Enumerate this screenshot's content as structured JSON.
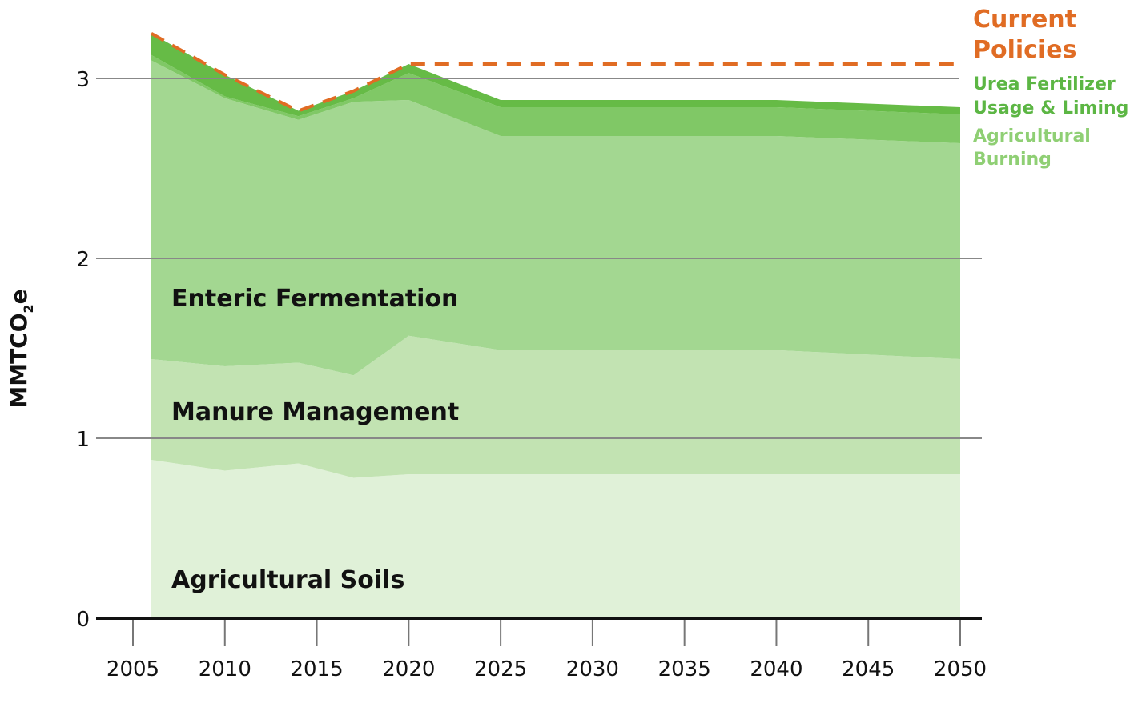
{
  "chart_data": {
    "type": "area",
    "stacked": true,
    "ylabel": "MMTCO",
    "ylabel_sub": "2",
    "ylabel_suffix": "e",
    "ylim": [
      0,
      3.3
    ],
    "xlim": [
      2005,
      2050
    ],
    "yticks": [
      "0",
      "1",
      "2",
      "3"
    ],
    "xticks": [
      "2005",
      "2010",
      "2015",
      "2020",
      "2025",
      "2030",
      "2035",
      "2040",
      "2045",
      "2050"
    ],
    "x": [
      2006,
      2010,
      2014,
      2017,
      2020,
      2025,
      2030,
      2035,
      2040,
      2050
    ],
    "series": [
      {
        "name": "Agricultural Soils",
        "color": "#e0f1d8",
        "values": [
          0.88,
          0.82,
          0.86,
          0.78,
          0.8,
          0.8,
          0.8,
          0.8,
          0.8,
          0.8
        ]
      },
      {
        "name": "Manure Management",
        "color": "#c2e3b2",
        "values": [
          0.56,
          0.58,
          0.56,
          0.57,
          0.77,
          0.69,
          0.69,
          0.69,
          0.69,
          0.64
        ]
      },
      {
        "name": "Enteric Fermentation",
        "color": "#a3d791",
        "values": [
          1.66,
          1.49,
          1.35,
          1.52,
          1.31,
          1.19,
          1.19,
          1.19,
          1.19,
          1.2
        ]
      },
      {
        "name": "Agricultural Burning",
        "color": "#80c866",
        "values": [
          0.03,
          0.01,
          0.02,
          0.02,
          0.15,
          0.16,
          0.16,
          0.16,
          0.16,
          0.16
        ]
      },
      {
        "name": "Urea Fertilizer Usage & Liming",
        "color": "#66bb46",
        "values": [
          0.12,
          0.12,
          0.03,
          0.04,
          0.05,
          0.04,
          0.04,
          0.04,
          0.04,
          0.04
        ]
      }
    ],
    "line": {
      "name": "Current Policies",
      "color": "#e06c24",
      "x": [
        2006,
        2010,
        2014,
        2017,
        2020,
        2050
      ],
      "values": [
        3.25,
        3.02,
        2.82,
        2.93,
        3.08,
        3.08
      ]
    },
    "legend": {
      "placement": "top-right",
      "current_policies": [
        "Current",
        "Policies"
      ],
      "urea": [
        "Urea Fertilizer",
        "Usage & Liming"
      ],
      "burning": [
        "Agricultural",
        "Burning"
      ],
      "urea_color": "#5cb644",
      "burning_color": "#8fcf74"
    },
    "in_chart_labels": [
      "Enteric Fermentation",
      "Manure Management",
      "Agricultural Soils"
    ],
    "grid": true
  }
}
